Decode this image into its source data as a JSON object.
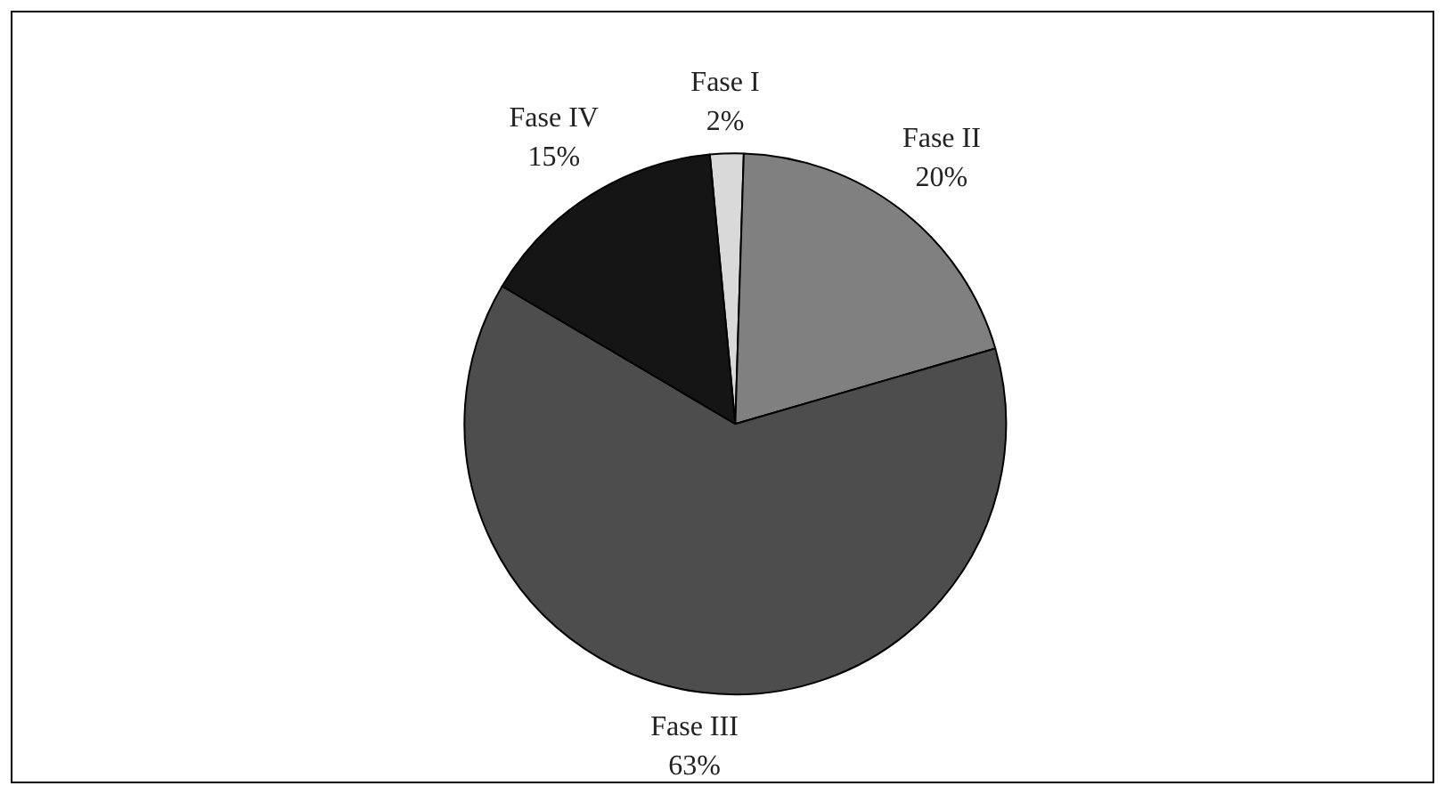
{
  "chart_data": {
    "type": "pie",
    "categories": [
      "Fase I",
      "Fase II",
      "Fase III",
      "Fase IV"
    ],
    "values": [
      2,
      20,
      63,
      15
    ],
    "value_labels": [
      "2%",
      "20%",
      "63%",
      "15%"
    ],
    "colors": [
      "#d9d9d9",
      "#808080",
      "#4d4d4d",
      "#151515"
    ]
  }
}
